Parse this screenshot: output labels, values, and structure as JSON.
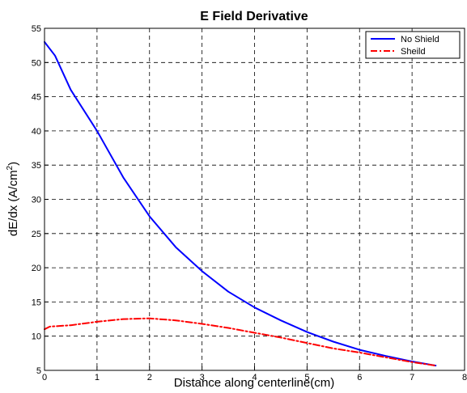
{
  "chart_data": {
    "type": "line",
    "title": "E Field Derivative",
    "xlabel": "Distance along centerline(cm)",
    "ylabel": {
      "main": "dE/dx (A/cm",
      "sup": "2",
      "close": ")"
    },
    "xlim": [
      0,
      8
    ],
    "ylim": [
      5,
      55
    ],
    "xticks": [
      "0",
      "1",
      "2",
      "3",
      "4",
      "5",
      "6",
      "7",
      "8"
    ],
    "yticks": [
      "5",
      "10",
      "15",
      "20",
      "25",
      "30",
      "35",
      "40",
      "45",
      "50",
      "55"
    ],
    "grid": true,
    "legend_position": "top-right",
    "series": [
      {
        "name": "No Shield",
        "color": "#0000ff",
        "style": "solid",
        "x": [
          0,
          0.2,
          0.5,
          1,
          1.5,
          2,
          2.5,
          3,
          3.5,
          4,
          4.5,
          5,
          5.5,
          6,
          6.5,
          7,
          7.45
        ],
        "y": [
          53,
          51,
          46,
          40,
          33.2,
          27.5,
          23,
          19.5,
          16.5,
          14.2,
          12.3,
          10.6,
          9.2,
          8.0,
          7.1,
          6.3,
          5.7
        ]
      },
      {
        "name": "Sheild",
        "color": "#ff0000",
        "style": "dashdot",
        "x": [
          0,
          0.1,
          0.5,
          1,
          1.5,
          2,
          2.5,
          3,
          3.5,
          4,
          4.5,
          5,
          5.5,
          6,
          6.5,
          7,
          7.45
        ],
        "y": [
          11.0,
          11.4,
          11.6,
          12.1,
          12.5,
          12.6,
          12.3,
          11.8,
          11.2,
          10.5,
          9.8,
          9.0,
          8.2,
          7.6,
          6.9,
          6.2,
          5.7
        ]
      }
    ]
  }
}
